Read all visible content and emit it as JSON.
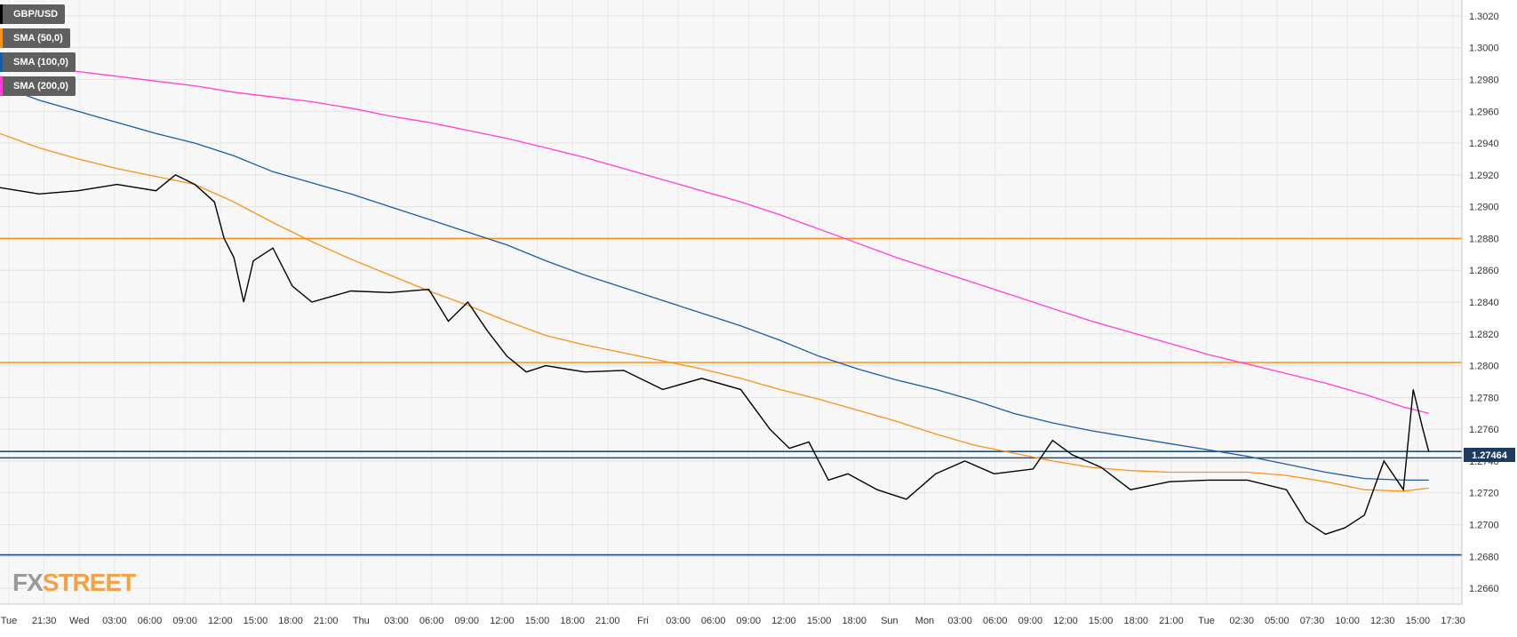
{
  "symbol": "GBP/USD",
  "current_price_label": "1.27464",
  "legend": [
    {
      "label": "GBP/USD",
      "color": "#000000"
    },
    {
      "label": "SMA (50,0)",
      "color": "#f7931a"
    },
    {
      "label": "SMA (100,0)",
      "color": "#1f5aa6"
    },
    {
      "label": "SMA (200,0)",
      "color": "#ff3ed8"
    }
  ],
  "logo": {
    "part1": "FX",
    "part2": "STREET"
  },
  "chart_data": {
    "type": "line",
    "ylim": [
      1.265,
      1.303
    ],
    "y_ticks": [
      "1.2660",
      "1.2680",
      "1.2700",
      "1.2720",
      "1.2740",
      "1.2760",
      "1.2780",
      "1.2800",
      "1.2820",
      "1.2840",
      "1.2860",
      "1.2880",
      "1.2900",
      "1.2920",
      "1.2940",
      "1.2960",
      "1.2980",
      "1.3000",
      "1.3020"
    ],
    "x_ticks": [
      "Tue",
      "21:30",
      "Wed",
      "03:00",
      "06:00",
      "09:00",
      "12:00",
      "15:00",
      "18:00",
      "21:00",
      "Thu",
      "03:00",
      "06:00",
      "09:00",
      "12:00",
      "15:00",
      "18:00",
      "21:00",
      "Fri",
      "03:00",
      "06:00",
      "09:00",
      "12:00",
      "15:00",
      "18:00",
      "Sun",
      "Mon",
      "03:00",
      "06:00",
      "09:00",
      "12:00",
      "15:00",
      "18:00",
      "21:00",
      "Tue",
      "02:30",
      "05:00",
      "07:30",
      "10:00",
      "12:30",
      "15:00",
      "17:30"
    ],
    "horizontal_levels": [
      {
        "value": 1.288,
        "color": "#f7931a"
      },
      {
        "value": 1.2802,
        "color": "#f7931a"
      },
      {
        "value": 1.2746,
        "color": "#1f4e79"
      },
      {
        "value": 1.2742,
        "color": "#1f4e79"
      },
      {
        "value": 1.2681,
        "color": "#1f4e79"
      }
    ],
    "series": [
      {
        "name": "SMA (50,0)",
        "color": "#f7931a",
        "x": [
          0,
          40,
          80,
          120,
          160,
          200,
          240,
          280,
          320,
          360,
          400,
          440,
          480,
          520,
          560,
          600,
          640,
          680,
          720,
          760,
          800,
          840,
          880,
          920,
          960,
          1000,
          1040,
          1080,
          1120,
          1160,
          1200,
          1240,
          1280,
          1320,
          1360,
          1400,
          1440,
          1466
        ],
        "values": [
          1.2946,
          1.2937,
          1.293,
          1.2924,
          1.2919,
          1.2914,
          1.2903,
          1.289,
          1.2878,
          1.2867,
          1.2857,
          1.2847,
          1.2838,
          1.2828,
          1.2819,
          1.2813,
          1.2808,
          1.2803,
          1.2798,
          1.2792,
          1.2785,
          1.2779,
          1.2772,
          1.2765,
          1.2757,
          1.275,
          1.2745,
          1.274,
          1.2736,
          1.2734,
          1.2733,
          1.2733,
          1.2733,
          1.2731,
          1.2727,
          1.2722,
          1.2721,
          1.2723
        ]
      },
      {
        "name": "SMA (100,0)",
        "color": "#1f5aa6",
        "x": [
          0,
          40,
          80,
          120,
          160,
          200,
          240,
          280,
          320,
          360,
          400,
          440,
          480,
          520,
          560,
          600,
          640,
          680,
          720,
          760,
          800,
          840,
          880,
          920,
          960,
          1000,
          1040,
          1080,
          1120,
          1160,
          1200,
          1240,
          1280,
          1320,
          1360,
          1400,
          1440,
          1466
        ],
        "values": [
          1.2976,
          1.2967,
          1.296,
          1.2953,
          1.2946,
          1.294,
          1.2932,
          1.2922,
          1.2915,
          1.2908,
          1.29,
          1.2892,
          1.2884,
          1.2876,
          1.2866,
          1.2857,
          1.2849,
          1.2841,
          1.2833,
          1.2825,
          1.2816,
          1.2806,
          1.2798,
          1.2791,
          1.2785,
          1.2778,
          1.277,
          1.2764,
          1.2759,
          1.2755,
          1.2751,
          1.2747,
          1.2743,
          1.2738,
          1.2733,
          1.2729,
          1.2728,
          1.2728
        ]
      },
      {
        "name": "SMA (200,0)",
        "color": "#ff3ed8",
        "x": [
          0,
          40,
          80,
          120,
          160,
          200,
          240,
          280,
          320,
          360,
          400,
          440,
          480,
          520,
          560,
          600,
          640,
          680,
          720,
          760,
          800,
          840,
          880,
          920,
          960,
          1000,
          1040,
          1080,
          1120,
          1160,
          1200,
          1240,
          1280,
          1320,
          1360,
          1400,
          1440,
          1466
        ],
        "values": [
          1.2991,
          1.2988,
          1.2985,
          1.2982,
          1.2979,
          1.2976,
          1.2972,
          1.2969,
          1.2966,
          1.2962,
          1.2957,
          1.2953,
          1.2948,
          1.2943,
          1.2937,
          1.2931,
          1.2924,
          1.2917,
          1.291,
          1.2903,
          1.2895,
          1.2886,
          1.2877,
          1.2868,
          1.286,
          1.2852,
          1.2844,
          1.2836,
          1.2828,
          1.2821,
          1.2814,
          1.2807,
          1.2801,
          1.2795,
          1.2789,
          1.2782,
          1.2774,
          1.277
        ]
      },
      {
        "name": "GBP/USD",
        "color": "#000000",
        "x": [
          0,
          40,
          80,
          120,
          160,
          180,
          200,
          220,
          230,
          240,
          250,
          260,
          280,
          300,
          320,
          360,
          400,
          440,
          460,
          480,
          500,
          520,
          540,
          560,
          600,
          640,
          680,
          720,
          760,
          790,
          810,
          830,
          850,
          870,
          900,
          930,
          960,
          990,
          1020,
          1060,
          1080,
          1100,
          1130,
          1160,
          1200,
          1240,
          1280,
          1320,
          1340,
          1360,
          1380,
          1400,
          1420,
          1440,
          1450,
          1460,
          1466
        ],
        "values": [
          1.2912,
          1.2908,
          1.291,
          1.2914,
          1.291,
          1.292,
          1.2914,
          1.2903,
          1.288,
          1.2868,
          1.284,
          1.2866,
          1.2874,
          1.285,
          1.284,
          1.2847,
          1.2846,
          1.2848,
          1.2828,
          1.284,
          1.2822,
          1.2806,
          1.2796,
          1.28,
          1.2796,
          1.2797,
          1.2785,
          1.2792,
          1.2785,
          1.276,
          1.2748,
          1.2752,
          1.2728,
          1.2732,
          1.2722,
          1.2716,
          1.2732,
          1.274,
          1.2732,
          1.2735,
          1.2753,
          1.2744,
          1.2736,
          1.2722,
          1.2727,
          1.2728,
          1.2728,
          1.2722,
          1.2702,
          1.2694,
          1.2698,
          1.2706,
          1.274,
          1.2722,
          1.2785,
          1.276,
          1.2746
        ]
      }
    ],
    "grid": true
  }
}
